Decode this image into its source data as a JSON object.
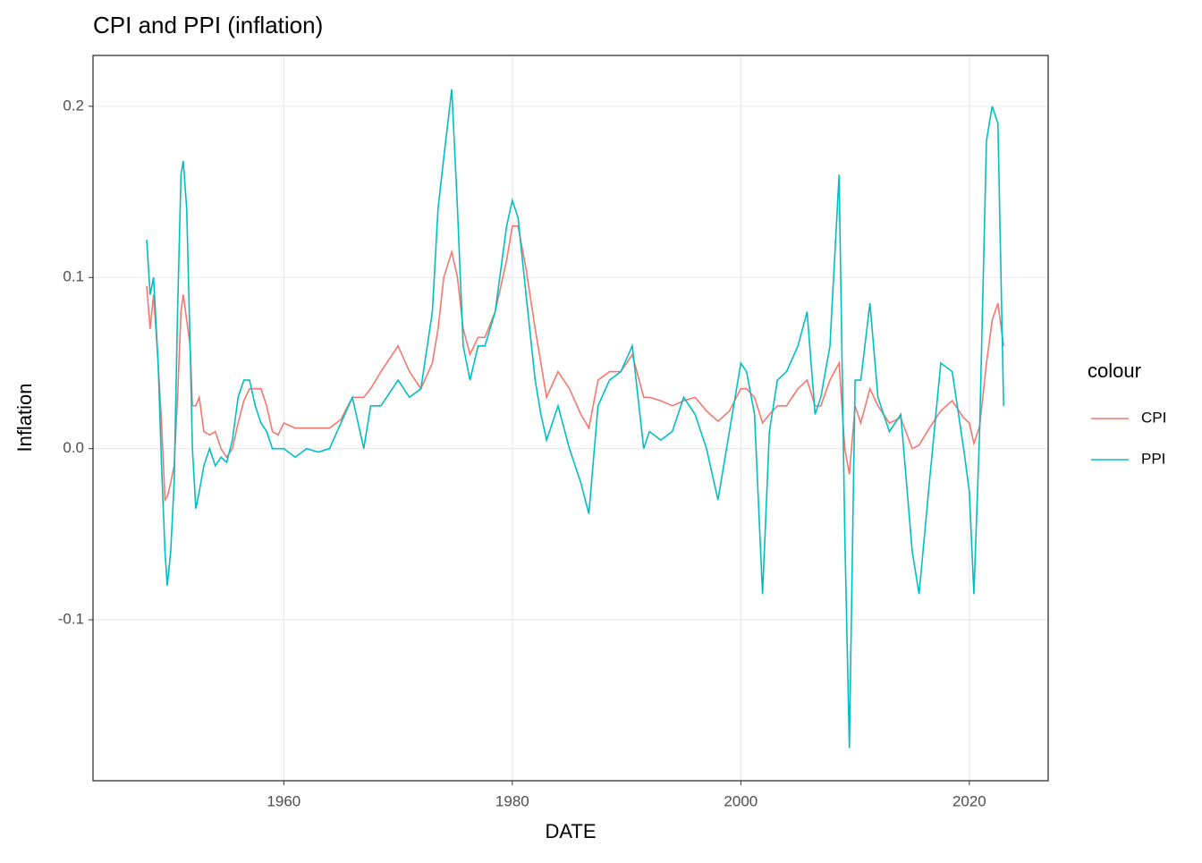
{
  "chart_data": {
    "type": "line",
    "title": "CPI and PPI (inflation)",
    "x_label": "DATE",
    "y_label": "Inflation",
    "legend_title": "colour",
    "legend_position": "right",
    "grid": true,
    "x": [
      1948.0,
      1948.3,
      1948.6,
      1949.0,
      1949.3,
      1949.6,
      1949.8,
      1950.1,
      1950.4,
      1950.7,
      1951.0,
      1951.2,
      1951.5,
      1951.8,
      1952.0,
      1952.3,
      1952.6,
      1953.0,
      1953.5,
      1954.0,
      1954.5,
      1955.0,
      1955.5,
      1956.0,
      1956.5,
      1957.0,
      1957.5,
      1958.0,
      1958.5,
      1959.0,
      1959.5,
      1960.0,
      1961.0,
      1962.0,
      1963.0,
      1964.0,
      1965.0,
      1966.0,
      1967.0,
      1967.6,
      1968.5,
      1969.5,
      1970.0,
      1971.0,
      1972.0,
      1973.0,
      1973.5,
      1974.0,
      1974.7,
      1975.2,
      1975.7,
      1976.3,
      1977.0,
      1977.6,
      1978.5,
      1979.5,
      1980.0,
      1980.5,
      1981.2,
      1982.0,
      1982.5,
      1983.0,
      1984.0,
      1985.0,
      1986.0,
      1986.7,
      1987.5,
      1988.5,
      1989.5,
      1990.5,
      1991.5,
      1992.0,
      1993.0,
      1994.0,
      1995.0,
      1996.0,
      1997.0,
      1998.0,
      1999.0,
      2000.0,
      2000.5,
      2001.2,
      2001.9,
      2002.5,
      2003.2,
      2004.0,
      2005.0,
      2005.8,
      2006.5,
      2007.0,
      2007.8,
      2008.6,
      2009.1,
      2009.5,
      2010.0,
      2010.5,
      2011.3,
      2012.0,
      2013.0,
      2014.0,
      2015.0,
      2015.6,
      2016.5,
      2017.5,
      2018.5,
      2019.5,
      2020.0,
      2020.4,
      2020.9,
      2021.5,
      2022.0,
      2022.5,
      2023.0
    ],
    "series": [
      {
        "name": "CPI",
        "color": "#F8766D",
        "values": [
          0.095,
          0.07,
          0.09,
          0.05,
          0.015,
          -0.03,
          -0.028,
          -0.02,
          -0.01,
          0.03,
          0.08,
          0.09,
          0.075,
          0.06,
          0.025,
          0.025,
          0.03,
          0.01,
          0.008,
          0.01,
          0.0,
          -0.005,
          0.0,
          0.015,
          0.028,
          0.035,
          0.035,
          0.035,
          0.025,
          0.01,
          0.008,
          0.015,
          0.012,
          0.012,
          0.012,
          0.012,
          0.017,
          0.03,
          0.03,
          0.035,
          0.045,
          0.055,
          0.06,
          0.045,
          0.035,
          0.05,
          0.07,
          0.1,
          0.115,
          0.1,
          0.07,
          0.055,
          0.065,
          0.065,
          0.08,
          0.11,
          0.13,
          0.13,
          0.105,
          0.07,
          0.05,
          0.03,
          0.045,
          0.035,
          0.02,
          0.012,
          0.04,
          0.045,
          0.045,
          0.055,
          0.03,
          0.03,
          0.028,
          0.025,
          0.028,
          0.03,
          0.022,
          0.016,
          0.022,
          0.035,
          0.035,
          0.03,
          0.015,
          0.02,
          0.025,
          0.025,
          0.035,
          0.04,
          0.025,
          0.025,
          0.04,
          0.05,
          0.0,
          -0.015,
          0.025,
          0.015,
          0.035,
          0.025,
          0.015,
          0.018,
          0.0,
          0.002,
          0.012,
          0.022,
          0.028,
          0.018,
          0.015,
          0.003,
          0.013,
          0.05,
          0.075,
          0.085,
          0.06
        ]
      },
      {
        "name": "PPI",
        "color": "#00BFC4",
        "values": [
          0.122,
          0.09,
          0.1,
          0.05,
          -0.01,
          -0.06,
          -0.08,
          -0.06,
          -0.02,
          0.08,
          0.16,
          0.168,
          0.14,
          0.06,
          0.0,
          -0.035,
          -0.025,
          -0.01,
          0.0,
          -0.01,
          -0.005,
          -0.008,
          0.005,
          0.03,
          0.04,
          0.04,
          0.025,
          0.015,
          0.01,
          0.0,
          0.0,
          0.0,
          -0.005,
          0.0,
          -0.002,
          0.0,
          0.015,
          0.03,
          0.0,
          0.025,
          0.025,
          0.035,
          0.04,
          0.03,
          0.035,
          0.08,
          0.14,
          0.17,
          0.21,
          0.14,
          0.06,
          0.04,
          0.06,
          0.06,
          0.08,
          0.13,
          0.145,
          0.135,
          0.09,
          0.04,
          0.02,
          0.005,
          0.025,
          0.0,
          -0.02,
          -0.038,
          0.025,
          0.04,
          0.045,
          0.06,
          0.0,
          0.01,
          0.005,
          0.01,
          0.03,
          0.02,
          0.0,
          -0.03,
          0.01,
          0.05,
          0.045,
          0.02,
          -0.085,
          0.01,
          0.04,
          0.045,
          0.06,
          0.08,
          0.02,
          0.03,
          0.06,
          0.16,
          -0.05,
          -0.175,
          0.04,
          0.04,
          0.085,
          0.03,
          0.01,
          0.02,
          -0.06,
          -0.085,
          -0.02,
          0.05,
          0.045,
          0.0,
          -0.025,
          -0.085,
          0.01,
          0.18,
          0.2,
          0.19,
          0.025
        ]
      }
    ],
    "xlim": [
      1943.3,
      2026.9
    ],
    "xticks": [
      1960,
      1980,
      2000,
      2020
    ],
    "ylim": [
      -0.194,
      0.2297
    ],
    "yticks": [
      0.2,
      0.1,
      {
        "value": 0,
        "label": "0.0"
      },
      -0.1
    ]
  }
}
